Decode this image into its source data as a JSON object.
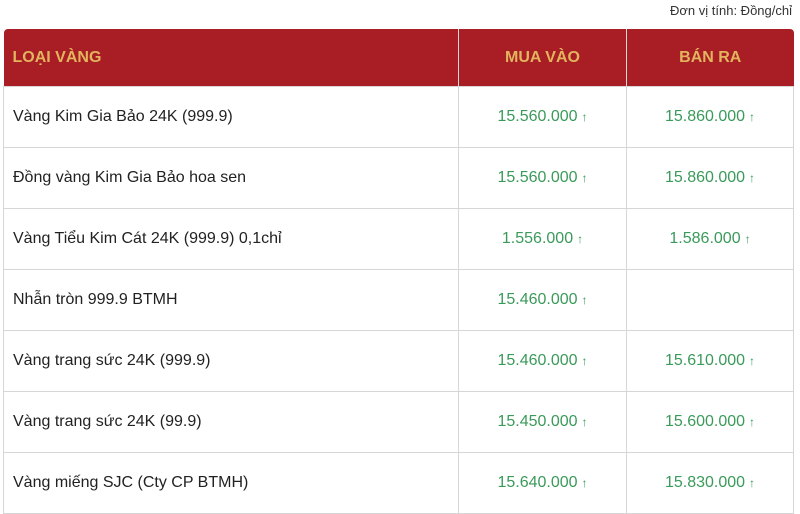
{
  "unit_label": "Đơn vị tính: Đồng/chỉ",
  "headers": [
    "LOẠI VÀNG",
    "MUA VÀO",
    "BÁN RA"
  ],
  "colors": {
    "header_bg": "#a81e24",
    "header_text": "#e2b45e",
    "up": "#3a9a5a"
  },
  "rows": [
    {
      "name": "Vàng Kim Gia Bảo 24K (999.9)",
      "buy": "15.560.000",
      "sell": "15.860.000"
    },
    {
      "name": "Đồng vàng Kim Gia Bảo hoa sen",
      "buy": "15.560.000",
      "sell": "15.860.000"
    },
    {
      "name": "Vàng Tiểu Kim Cát 24K (999.9) 0,1chỉ",
      "buy": "1.556.000",
      "sell": "1.586.000"
    },
    {
      "name": "Nhẫn tròn 999.9 BTMH",
      "buy": "15.460.000",
      "sell": ""
    },
    {
      "name": "Vàng trang sức 24K (999.9)",
      "buy": "15.460.000",
      "sell": "15.610.000"
    },
    {
      "name": "Vàng trang sức 24K (99.9)",
      "buy": "15.450.000",
      "sell": "15.600.000"
    },
    {
      "name": "Vàng miếng SJC (Cty CP BTMH)",
      "buy": "15.640.000",
      "sell": "15.830.000"
    }
  ],
  "arrow": "↑"
}
